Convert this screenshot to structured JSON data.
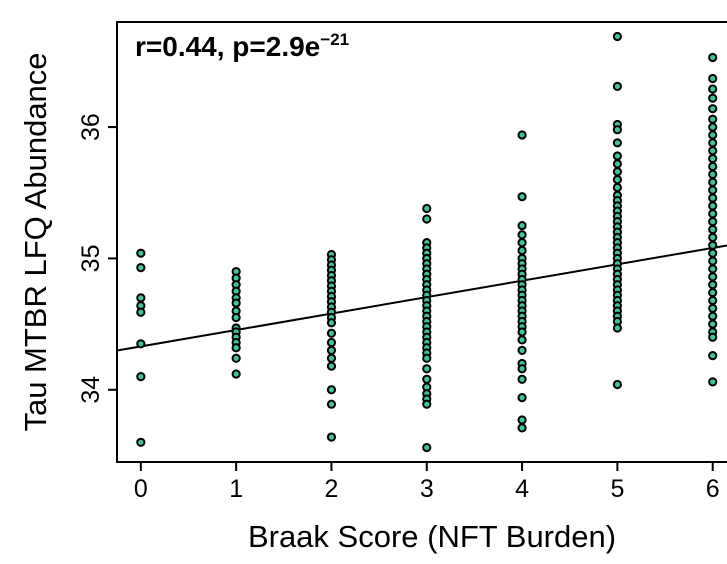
{
  "chart_data": {
    "type": "scatter",
    "xlabel": "Braak Score (NFT Burden)",
    "ylabel": "Tau MTBR LFQ Abundance",
    "annotation": {
      "prefix": "r=0.44, p=2.9e",
      "exponent": "−21"
    },
    "xlim": [
      -0.25,
      6.15
    ],
    "ylim": [
      33.45,
      36.8
    ],
    "x_ticks": [
      0,
      1,
      2,
      3,
      4,
      5,
      6
    ],
    "x_tick_labels": [
      "0",
      "1",
      "2",
      "3",
      "4",
      "5",
      "6"
    ],
    "y_ticks": [
      34,
      35,
      36
    ],
    "y_tick_labels": [
      "34",
      "35",
      "36"
    ],
    "grid": false,
    "colors": {
      "point_fill": "#3ec795",
      "point_stroke": "#000000",
      "line": "#000000"
    },
    "regression": {
      "intercept": 34.33,
      "slope": 0.125
    },
    "series": [
      {
        "points": [
          {
            "x": 0,
            "y": 35.04
          },
          {
            "x": 0,
            "y": 34.93
          },
          {
            "x": 0,
            "y": 34.7
          },
          {
            "x": 0,
            "y": 34.64
          },
          {
            "x": 0,
            "y": 34.59
          },
          {
            "x": 0,
            "y": 34.35
          },
          {
            "x": 0,
            "y": 34.1
          },
          {
            "x": 0,
            "y": 33.6
          },
          {
            "x": 1,
            "y": 34.9
          },
          {
            "x": 1,
            "y": 34.85
          },
          {
            "x": 1,
            "y": 34.8
          },
          {
            "x": 1,
            "y": 34.75
          },
          {
            "x": 1,
            "y": 34.7
          },
          {
            "x": 1,
            "y": 34.66
          },
          {
            "x": 1,
            "y": 34.6
          },
          {
            "x": 1,
            "y": 34.55
          },
          {
            "x": 1,
            "y": 34.47
          },
          {
            "x": 1,
            "y": 34.44
          },
          {
            "x": 1,
            "y": 34.4
          },
          {
            "x": 1,
            "y": 34.36
          },
          {
            "x": 1,
            "y": 34.32
          },
          {
            "x": 1,
            "y": 34.24
          },
          {
            "x": 1,
            "y": 34.12
          },
          {
            "x": 2,
            "y": 35.03
          },
          {
            "x": 2,
            "y": 34.99
          },
          {
            "x": 2,
            "y": 34.95
          },
          {
            "x": 2,
            "y": 34.91
          },
          {
            "x": 2,
            "y": 34.87
          },
          {
            "x": 2,
            "y": 34.83
          },
          {
            "x": 2,
            "y": 34.79
          },
          {
            "x": 2,
            "y": 34.75
          },
          {
            "x": 2,
            "y": 34.71
          },
          {
            "x": 2,
            "y": 34.67
          },
          {
            "x": 2,
            "y": 34.63
          },
          {
            "x": 2,
            "y": 34.59
          },
          {
            "x": 2,
            "y": 34.55
          },
          {
            "x": 2,
            "y": 34.51
          },
          {
            "x": 2,
            "y": 34.43
          },
          {
            "x": 2,
            "y": 34.36
          },
          {
            "x": 2,
            "y": 34.3
          },
          {
            "x": 2,
            "y": 34.24
          },
          {
            "x": 2,
            "y": 34.18
          },
          {
            "x": 2,
            "y": 34.0
          },
          {
            "x": 2,
            "y": 33.89
          },
          {
            "x": 2,
            "y": 33.64
          },
          {
            "x": 3,
            "y": 35.38
          },
          {
            "x": 3,
            "y": 35.3
          },
          {
            "x": 3,
            "y": 35.12
          },
          {
            "x": 3,
            "y": 35.08
          },
          {
            "x": 3,
            "y": 35.04
          },
          {
            "x": 3,
            "y": 35.0
          },
          {
            "x": 3,
            "y": 34.96
          },
          {
            "x": 3,
            "y": 34.92
          },
          {
            "x": 3,
            "y": 34.88
          },
          {
            "x": 3,
            "y": 34.84
          },
          {
            "x": 3,
            "y": 34.8
          },
          {
            "x": 3,
            "y": 34.76
          },
          {
            "x": 3,
            "y": 34.72
          },
          {
            "x": 3,
            "y": 34.68
          },
          {
            "x": 3,
            "y": 34.64
          },
          {
            "x": 3,
            "y": 34.6
          },
          {
            "x": 3,
            "y": 34.56
          },
          {
            "x": 3,
            "y": 34.52
          },
          {
            "x": 3,
            "y": 34.48
          },
          {
            "x": 3,
            "y": 34.44
          },
          {
            "x": 3,
            "y": 34.4
          },
          {
            "x": 3,
            "y": 34.36
          },
          {
            "x": 3,
            "y": 34.32
          },
          {
            "x": 3,
            "y": 34.28
          },
          {
            "x": 3,
            "y": 34.24
          },
          {
            "x": 3,
            "y": 34.16
          },
          {
            "x": 3,
            "y": 34.08
          },
          {
            "x": 3,
            "y": 34.02
          },
          {
            "x": 3,
            "y": 33.97
          },
          {
            "x": 3,
            "y": 33.93
          },
          {
            "x": 3,
            "y": 33.89
          },
          {
            "x": 3,
            "y": 33.56
          },
          {
            "x": 4,
            "y": 35.94
          },
          {
            "x": 4,
            "y": 35.47
          },
          {
            "x": 4,
            "y": 35.25
          },
          {
            "x": 4,
            "y": 35.18
          },
          {
            "x": 4,
            "y": 35.12
          },
          {
            "x": 4,
            "y": 35.06
          },
          {
            "x": 4,
            "y": 35.0
          },
          {
            "x": 4,
            "y": 34.96
          },
          {
            "x": 4,
            "y": 34.92
          },
          {
            "x": 4,
            "y": 34.88
          },
          {
            "x": 4,
            "y": 34.84
          },
          {
            "x": 4,
            "y": 34.8
          },
          {
            "x": 4,
            "y": 34.76
          },
          {
            "x": 4,
            "y": 34.72
          },
          {
            "x": 4,
            "y": 34.68
          },
          {
            "x": 4,
            "y": 34.64
          },
          {
            "x": 4,
            "y": 34.6
          },
          {
            "x": 4,
            "y": 34.56
          },
          {
            "x": 4,
            "y": 34.52
          },
          {
            "x": 4,
            "y": 34.48
          },
          {
            "x": 4,
            "y": 34.44
          },
          {
            "x": 4,
            "y": 34.38
          },
          {
            "x": 4,
            "y": 34.3
          },
          {
            "x": 4,
            "y": 34.2
          },
          {
            "x": 4,
            "y": 34.16
          },
          {
            "x": 4,
            "y": 34.08
          },
          {
            "x": 4,
            "y": 33.94
          },
          {
            "x": 4,
            "y": 33.77
          },
          {
            "x": 4,
            "y": 33.71
          },
          {
            "x": 5,
            "y": 36.69
          },
          {
            "x": 5,
            "y": 36.31
          },
          {
            "x": 5,
            "y": 36.02
          },
          {
            "x": 5,
            "y": 35.98
          },
          {
            "x": 5,
            "y": 35.88
          },
          {
            "x": 5,
            "y": 35.78
          },
          {
            "x": 5,
            "y": 35.72
          },
          {
            "x": 5,
            "y": 35.66
          },
          {
            "x": 5,
            "y": 35.6
          },
          {
            "x": 5,
            "y": 35.54
          },
          {
            "x": 5,
            "y": 35.48
          },
          {
            "x": 5,
            "y": 35.44
          },
          {
            "x": 5,
            "y": 35.4
          },
          {
            "x": 5,
            "y": 35.36
          },
          {
            "x": 5,
            "y": 35.32
          },
          {
            "x": 5,
            "y": 35.28
          },
          {
            "x": 5,
            "y": 35.24
          },
          {
            "x": 5,
            "y": 35.2
          },
          {
            "x": 5,
            "y": 35.16
          },
          {
            "x": 5,
            "y": 35.12
          },
          {
            "x": 5,
            "y": 35.08
          },
          {
            "x": 5,
            "y": 35.04
          },
          {
            "x": 5,
            "y": 35.0
          },
          {
            "x": 5,
            "y": 34.96
          },
          {
            "x": 5,
            "y": 34.92
          },
          {
            "x": 5,
            "y": 34.88
          },
          {
            "x": 5,
            "y": 34.84
          },
          {
            "x": 5,
            "y": 34.8
          },
          {
            "x": 5,
            "y": 34.76
          },
          {
            "x": 5,
            "y": 34.72
          },
          {
            "x": 5,
            "y": 34.68
          },
          {
            "x": 5,
            "y": 34.64
          },
          {
            "x": 5,
            "y": 34.6
          },
          {
            "x": 5,
            "y": 34.56
          },
          {
            "x": 5,
            "y": 34.52
          },
          {
            "x": 5,
            "y": 34.47
          },
          {
            "x": 5,
            "y": 34.04
          },
          {
            "x": 6,
            "y": 36.53
          },
          {
            "x": 6,
            "y": 36.37
          },
          {
            "x": 6,
            "y": 36.29
          },
          {
            "x": 6,
            "y": 36.22
          },
          {
            "x": 6,
            "y": 36.14
          },
          {
            "x": 6,
            "y": 36.06
          },
          {
            "x": 6,
            "y": 36.0
          },
          {
            "x": 6,
            "y": 35.94
          },
          {
            "x": 6,
            "y": 35.88
          },
          {
            "x": 6,
            "y": 35.82
          },
          {
            "x": 6,
            "y": 35.76
          },
          {
            "x": 6,
            "y": 35.7
          },
          {
            "x": 6,
            "y": 35.64
          },
          {
            "x": 6,
            "y": 35.58
          },
          {
            "x": 6,
            "y": 35.52
          },
          {
            "x": 6,
            "y": 35.46
          },
          {
            "x": 6,
            "y": 35.4
          },
          {
            "x": 6,
            "y": 35.34
          },
          {
            "x": 6,
            "y": 35.28
          },
          {
            "x": 6,
            "y": 35.22
          },
          {
            "x": 6,
            "y": 35.16
          },
          {
            "x": 6,
            "y": 35.1
          },
          {
            "x": 6,
            "y": 35.04
          },
          {
            "x": 6,
            "y": 34.98
          },
          {
            "x": 6,
            "y": 34.92
          },
          {
            "x": 6,
            "y": 34.86
          },
          {
            "x": 6,
            "y": 34.8
          },
          {
            "x": 6,
            "y": 34.74
          },
          {
            "x": 6,
            "y": 34.68
          },
          {
            "x": 6,
            "y": 34.62
          },
          {
            "x": 6,
            "y": 34.56
          },
          {
            "x": 6,
            "y": 34.5
          },
          {
            "x": 6,
            "y": 34.44
          },
          {
            "x": 6,
            "y": 34.4
          },
          {
            "x": 6,
            "y": 34.26
          },
          {
            "x": 6,
            "y": 34.06
          }
        ]
      }
    ]
  }
}
